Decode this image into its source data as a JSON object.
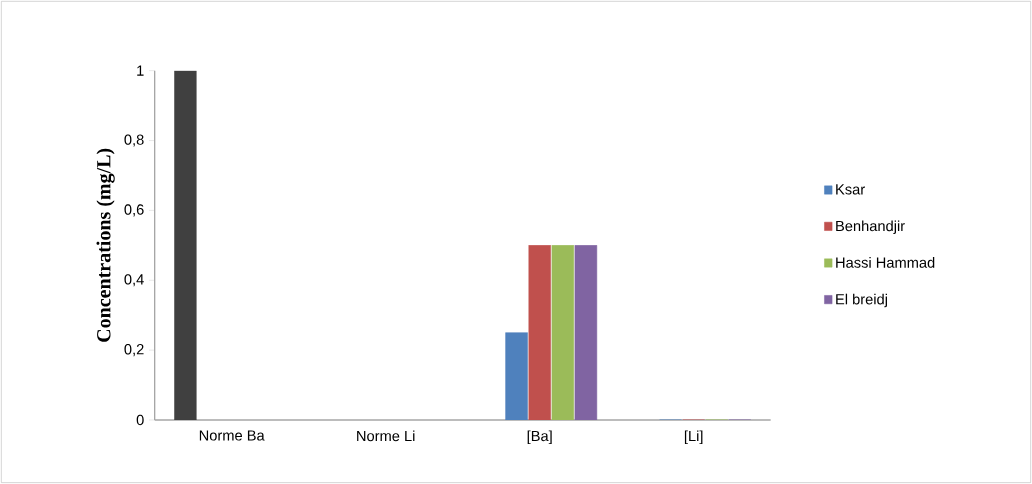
{
  "chart_data": {
    "type": "bar",
    "ylabel": "Concentrations (mg/L)",
    "categories": [
      "Norme Ba",
      "Norme Li",
      "[Ba]",
      "[Li]"
    ],
    "series": [
      {
        "color": "#404040",
        "values": [
          1,
          null,
          null,
          null
        ]
      },
      {
        "name": "Ksar",
        "color": "#4f81bd",
        "values": [
          null,
          null,
          0.25,
          0
        ]
      },
      {
        "name": "Benhandjir",
        "color": "#c0504d",
        "values": [
          null,
          null,
          0.5,
          0
        ]
      },
      {
        "name": "Hassi Hammad",
        "color": "#9bbb59",
        "values": [
          null,
          null,
          0.5,
          0
        ]
      },
      {
        "name": "El breidj",
        "color": "#8064a2",
        "values": [
          null,
          null,
          0.5,
          0
        ]
      }
    ],
    "ylim": [
      0,
      1
    ],
    "yticks": [
      0,
      {
        "value": 0.2,
        "label": "0,2"
      },
      {
        "value": 0.4,
        "label": "0,4"
      },
      {
        "value": 0.6,
        "label": "0,6"
      },
      {
        "value": 0.8,
        "label": "0,8"
      },
      1
    ],
    "grid": false,
    "legend": "right"
  }
}
